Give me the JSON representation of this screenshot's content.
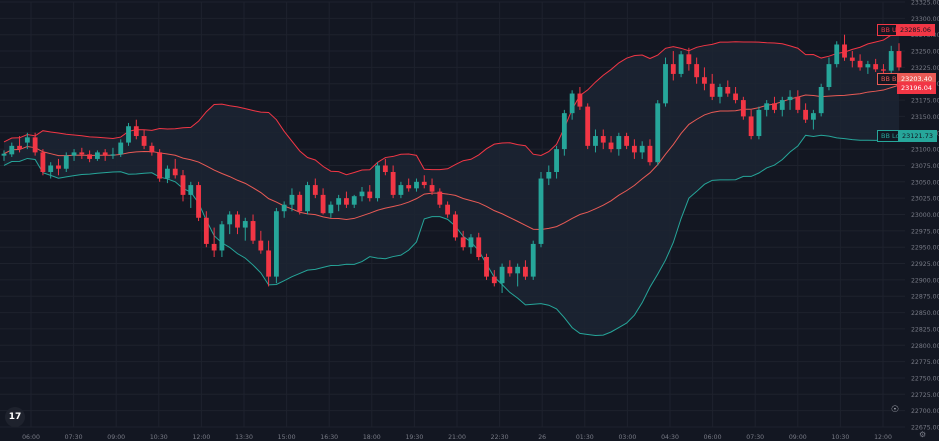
{
  "price_axis": {
    "ticks": [
      "23325.00",
      "23300.00",
      "23275.00",
      "23250.00",
      "23225.00",
      "23200.00",
      "23175.00",
      "23150.00",
      "23125.00",
      "23100.00",
      "23075.00",
      "23050.00",
      "23025.00",
      "23000.00",
      "22975.00",
      "22950.00",
      "22925.00",
      "22900.00",
      "22875.00",
      "22850.00",
      "22825.00",
      "22800.00",
      "22775.00",
      "22750.00",
      "22725.00",
      "22700.00",
      "22675.00"
    ]
  },
  "time_axis": {
    "ticks": [
      "06:00",
      "07:30",
      "09:00",
      "10:30",
      "12:00",
      "13:30",
      "15:00",
      "16:30",
      "18:00",
      "19:30",
      "21:00",
      "22:30",
      "26",
      "01:30",
      "03:00",
      "04:30",
      "06:00",
      "07:30",
      "09:00",
      "10:30",
      "12:00"
    ]
  },
  "labels": {
    "upper_name": "BB Upper",
    "upper_value": "23285.06",
    "basis_name": "BB Basis",
    "basis_value": "23203.40",
    "basis_value2": "23196.04",
    "lower_name": "BB Lower",
    "lower_value": "23121.73"
  },
  "logo_text": "17",
  "icons": {
    "logo": "tradingview-logo-icon",
    "bulb": "lightbulb-icon",
    "settings": "gear-icon"
  },
  "colors": {
    "up": "#26a69a",
    "down": "#f23645",
    "basis": "#e85a55",
    "upper": "#f23645",
    "lower": "#26a69a",
    "band_fill": "#1c2433",
    "grid": "#1e222d",
    "axis_text": "#787b86"
  },
  "chart_data": {
    "type": "candlestick",
    "title": "",
    "indicator": "Bollinger Bands",
    "ylim": [
      22675,
      23325
    ],
    "x_tick_labels": [
      "06:00",
      "07:30",
      "09:00",
      "10:30",
      "12:00",
      "13:30",
      "15:00",
      "16:30",
      "18:00",
      "19:30",
      "21:00",
      "22:30",
      "26",
      "01:30",
      "03:00",
      "04:30",
      "06:00",
      "07:30",
      "09:00",
      "10:30",
      "12:00"
    ],
    "candles": [
      [
        23090,
        23098,
        23082,
        23093
      ],
      [
        23092,
        23110,
        23088,
        23105
      ],
      [
        23105,
        23120,
        23095,
        23100
      ],
      [
        23110,
        23125,
        23100,
        23118
      ],
      [
        23118,
        23125,
        23090,
        23095
      ],
      [
        23095,
        23100,
        23060,
        23065
      ],
      [
        23065,
        23080,
        23055,
        23075
      ],
      [
        23075,
        23085,
        23060,
        23070
      ],
      [
        23070,
        23095,
        23065,
        23090
      ],
      [
        23090,
        23100,
        23082,
        23095
      ],
      [
        23095,
        23102,
        23085,
        23092
      ],
      [
        23092,
        23098,
        23080,
        23085
      ],
      [
        23085,
        23098,
        23082,
        23095
      ],
      [
        23095,
        23100,
        23082,
        23090
      ],
      [
        23090,
        23102,
        23085,
        23092
      ],
      [
        23092,
        23115,
        23088,
        23110
      ],
      [
        23110,
        23140,
        23105,
        23135
      ],
      [
        23135,
        23145,
        23115,
        23120
      ],
      [
        23120,
        23130,
        23100,
        23105
      ],
      [
        23105,
        23110,
        23090,
        23095
      ],
      [
        23095,
        23100,
        23050,
        23055
      ],
      [
        23055,
        23075,
        23048,
        23070
      ],
      [
        23070,
        23085,
        23055,
        23060
      ],
      [
        23060,
        23068,
        23020,
        23030
      ],
      [
        23030,
        23050,
        23010,
        23045
      ],
      [
        23045,
        23050,
        22990,
        22995
      ],
      [
        22995,
        23005,
        22950,
        22955
      ],
      [
        22955,
        22980,
        22935,
        22945
      ],
      [
        22945,
        22990,
        22935,
        22985
      ],
      [
        22985,
        23005,
        22970,
        23000
      ],
      [
        23000,
        23005,
        22970,
        22980
      ],
      [
        22980,
        22995,
        22960,
        22990
      ],
      [
        22990,
        23000,
        22955,
        22960
      ],
      [
        22960,
        22975,
        22940,
        22945
      ],
      [
        22945,
        22960,
        22890,
        22905
      ],
      [
        22905,
        23010,
        22895,
        23005
      ],
      [
        23005,
        23020,
        22995,
        23015
      ],
      [
        23015,
        23040,
        23005,
        23030
      ],
      [
        23030,
        23035,
        23000,
        23005
      ],
      [
        23005,
        23050,
        23000,
        23045
      ],
      [
        23045,
        23055,
        23025,
        23030
      ],
      [
        23030,
        23040,
        23000,
        23002
      ],
      [
        23002,
        23020,
        22995,
        23015
      ],
      [
        23015,
        23030,
        23005,
        23025
      ],
      [
        23025,
        23035,
        23010,
        23015
      ],
      [
        23015,
        23030,
        23010,
        23028
      ],
      [
        23028,
        23042,
        23020,
        23035
      ],
      [
        23035,
        23045,
        23020,
        23025
      ],
      [
        23025,
        23080,
        23020,
        23075
      ],
      [
        23075,
        23085,
        23060,
        23065
      ],
      [
        23065,
        23075,
        23025,
        23030
      ],
      [
        23030,
        23050,
        23025,
        23045
      ],
      [
        23045,
        23055,
        23035,
        23040
      ],
      [
        23040,
        23055,
        23035,
        23050
      ],
      [
        23050,
        23060,
        23040,
        23045
      ],
      [
        23045,
        23055,
        23030,
        23035
      ],
      [
        23035,
        23040,
        23010,
        23015
      ],
      [
        23015,
        23020,
        22995,
        23000
      ],
      [
        23000,
        23005,
        22960,
        22965
      ],
      [
        22965,
        22975,
        22945,
        22950
      ],
      [
        22950,
        22970,
        22940,
        22965
      ],
      [
        22965,
        22972,
        22930,
        22935
      ],
      [
        22935,
        22940,
        22900,
        22905
      ],
      [
        22905,
        22915,
        22890,
        22895
      ],
      [
        22895,
        22925,
        22880,
        22920
      ],
      [
        22920,
        22930,
        22905,
        22910
      ],
      [
        22910,
        22925,
        22890,
        22920
      ],
      [
        22920,
        22930,
        22900,
        22905
      ],
      [
        22905,
        22960,
        22900,
        22955
      ],
      [
        22955,
        23065,
        22950,
        23055
      ],
      [
        23055,
        23075,
        23045,
        23065
      ],
      [
        23065,
        23105,
        23055,
        23100
      ],
      [
        23100,
        23160,
        23090,
        23155
      ],
      [
        23155,
        23190,
        23145,
        23185
      ],
      [
        23185,
        23195,
        23160,
        23165
      ],
      [
        23165,
        23170,
        23100,
        23105
      ],
      [
        23105,
        23130,
        23095,
        23120
      ],
      [
        23120,
        23130,
        23100,
        23110
      ],
      [
        23110,
        23120,
        23095,
        23100
      ],
      [
        23100,
        23125,
        23090,
        23120
      ],
      [
        23120,
        23125,
        23100,
        23105
      ],
      [
        23105,
        23115,
        23085,
        23095
      ],
      [
        23095,
        23112,
        23085,
        23105
      ],
      [
        23105,
        23115,
        23075,
        23080
      ],
      [
        23080,
        23175,
        23075,
        23170
      ],
      [
        23170,
        23240,
        23165,
        23230
      ],
      [
        23230,
        23250,
        23205,
        23215
      ],
      [
        23215,
        23250,
        23210,
        23245
      ],
      [
        23245,
        23255,
        23220,
        23230
      ],
      [
        23230,
        23240,
        23200,
        23210
      ],
      [
        23210,
        23225,
        23190,
        23200
      ],
      [
        23200,
        23215,
        23175,
        23180
      ],
      [
        23180,
        23200,
        23170,
        23195
      ],
      [
        23195,
        23205,
        23180,
        23185
      ],
      [
        23185,
        23195,
        23170,
        23175
      ],
      [
        23175,
        23180,
        23145,
        23150
      ],
      [
        23150,
        23160,
        23115,
        23120
      ],
      [
        23120,
        23165,
        23115,
        23160
      ],
      [
        23160,
        23175,
        23150,
        23170
      ],
      [
        23170,
        23180,
        23155,
        23160
      ],
      [
        23160,
        23180,
        23150,
        23175
      ],
      [
        23175,
        23190,
        23160,
        23180
      ],
      [
        23180,
        23190,
        23155,
        23160
      ],
      [
        23160,
        23170,
        23140,
        23145
      ],
      [
        23145,
        23160,
        23130,
        23155
      ],
      [
        23155,
        23200,
        23150,
        23195
      ],
      [
        23195,
        23240,
        23190,
        23230
      ],
      [
        23230,
        23265,
        23225,
        23260
      ],
      [
        23260,
        23275,
        23235,
        23240
      ],
      [
        23240,
        23250,
        23225,
        23235
      ],
      [
        23235,
        23245,
        23220,
        23225
      ],
      [
        23225,
        23235,
        23215,
        23230
      ],
      [
        23230,
        23238,
        23218,
        23222
      ],
      [
        23222,
        23230,
        23215,
        23220
      ],
      [
        23220,
        23258,
        23215,
        23250
      ],
      [
        23250,
        23262,
        23220,
        23225
      ]
    ],
    "series": [
      {
        "name": "BB Upper",
        "last_value": 23285.06
      },
      {
        "name": "BB Basis",
        "last_value": 23203.4
      },
      {
        "name": "BB Lower",
        "last_value": 23121.73
      }
    ]
  }
}
